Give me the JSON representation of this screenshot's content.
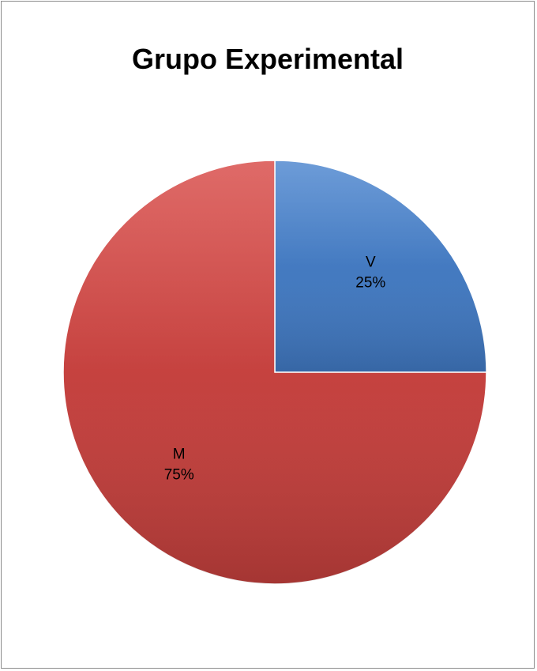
{
  "chart_data": {
    "type": "pie",
    "title": "Grupo Experimental",
    "categories": [
      "V",
      "M"
    ],
    "values": [
      25,
      75
    ],
    "labels": [
      "25%",
      "75%"
    ],
    "colors": [
      "#4a80c6",
      "#c94442"
    ],
    "start": "12 o'clock, clockwise",
    "legend": "none"
  }
}
